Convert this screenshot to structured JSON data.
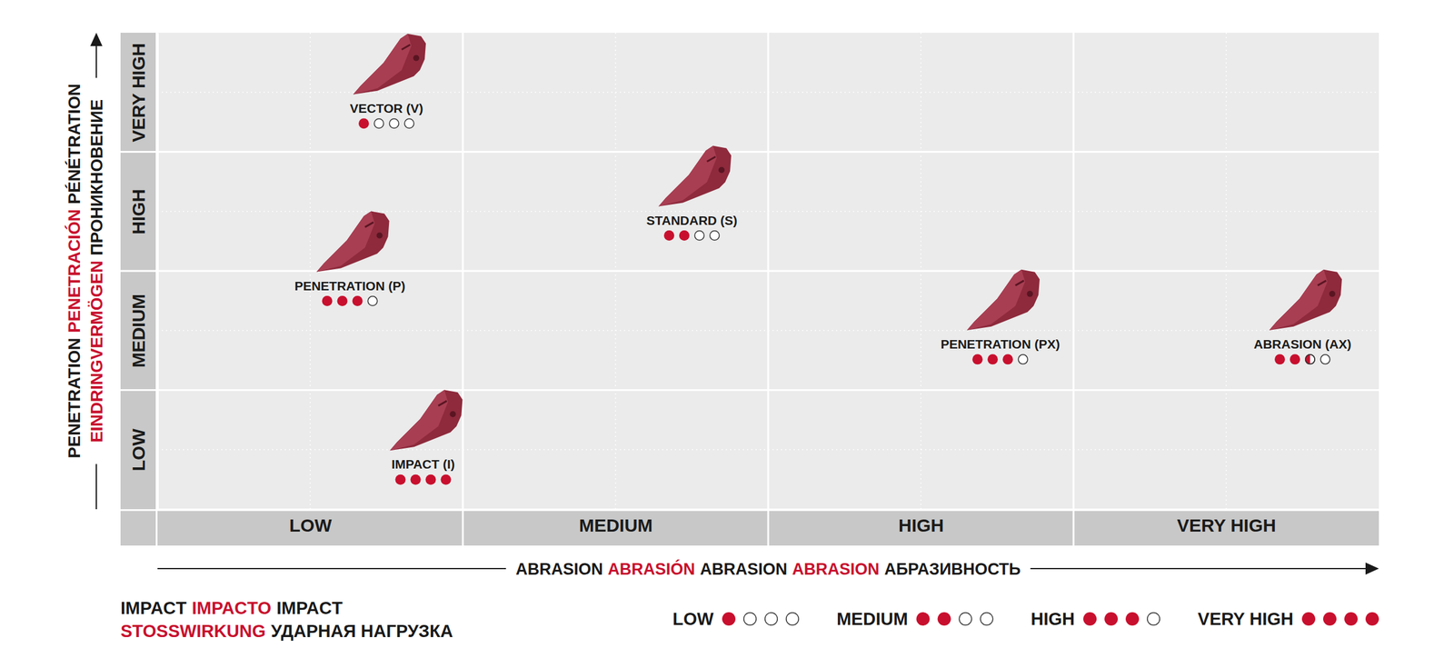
{
  "chart_data": {
    "type": "scatter",
    "x_label": [
      [
        "ABRASION",
        "ABRASIÓN",
        "ABRASION",
        "ABRASION",
        "АБРАЗИВНОСТЬ"
      ]
    ],
    "y_label": [
      [
        "PENETRATION",
        "PENETRACIÓN",
        "PÉNÉTRATION"
      ],
      [
        "EINDRINGVERMÖGEN",
        "ПРОНИКНОВЕНИЕ"
      ]
    ],
    "xlim": [
      0,
      4
    ],
    "xticks": [
      {
        "value": 0.5,
        "label": "LOW"
      },
      {
        "value": 1.5,
        "label": "MEDIUM"
      },
      {
        "value": 2.5,
        "label": "HIGH"
      },
      {
        "value": 3.5,
        "label": "VERY HIGH"
      }
    ],
    "ylim": [
      0,
      4
    ],
    "yticks": [
      {
        "value": 0.5,
        "label": "LOW"
      },
      {
        "value": 1.5,
        "label": "MEDIUM"
      },
      {
        "value": 2.5,
        "label": "HIGH"
      },
      {
        "value": 3.5,
        "label": "VERY HIGH"
      }
    ],
    "grid": true,
    "labels": [
      "VECTOR (V)",
      "STANDARD (S)",
      "PENETRATION (P)",
      "PENETRATION (PX)",
      "ABRASION (AX)",
      "IMPACT (I)"
    ],
    "x": [
      0.75,
      1.75,
      0.63,
      2.76,
      3.75,
      0.87
    ],
    "values": [
      3.37,
      2.43,
      1.88,
      1.39,
      1.39,
      0.38
    ],
    "impact": [
      1,
      2,
      3,
      3,
      2.5,
      4
    ],
    "impact_legend": {
      "title": [
        [
          "IMPACT",
          "IMPACTO",
          "IMPACT"
        ],
        [
          "STOSSWIRKUNG",
          "УДАРНАЯ НАГРУЗКА"
        ]
      ],
      "labels": [
        "LOW",
        "MEDIUM",
        "HIGH",
        "VERY HIGH"
      ],
      "values": [
        1,
        2,
        3,
        4
      ]
    }
  }
}
